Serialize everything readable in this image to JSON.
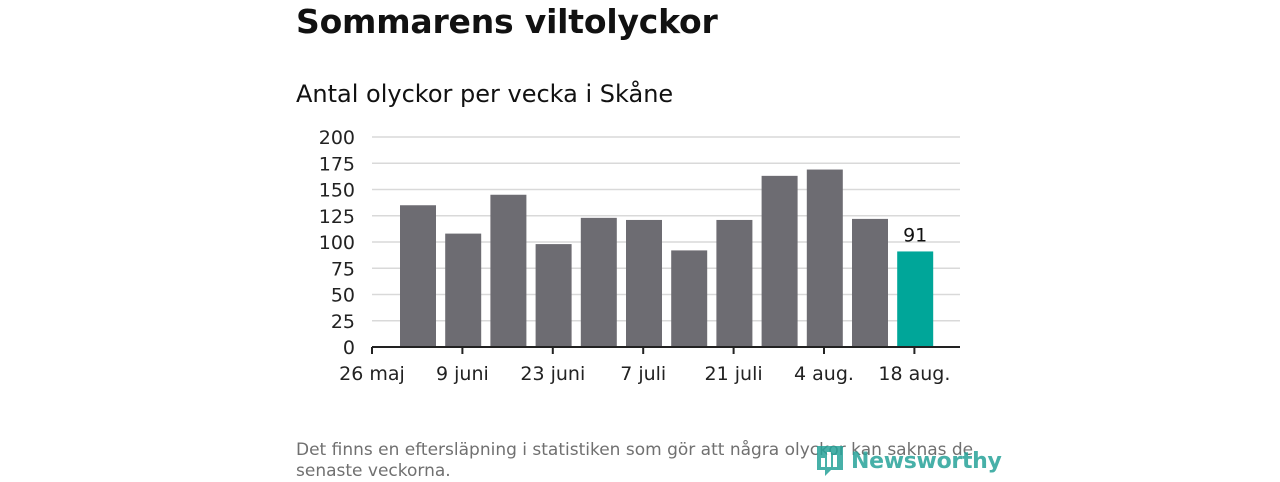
{
  "header": {
    "title": "Sommarens viltolyckor",
    "subtitle": "Antal olyckor per vecka i Skåne"
  },
  "footnote": "Det finns en eftersläpning i statistiken som gör att några olyckor kan saknas de senaste veckorna.",
  "logo": {
    "text": "Newsworthy",
    "icon": "bar-chart-logo-icon",
    "color": "#27a39a"
  },
  "colors": {
    "bar": "#6d6c72",
    "highlight": "#00a699",
    "grid": "#d9d9d9",
    "axis": "#222222"
  },
  "chart_data": {
    "type": "bar",
    "title": "Antal olyckor per vecka i Skåne",
    "xlabel": "",
    "ylabel": "",
    "ylim": [
      0,
      200
    ],
    "yticks": [
      0,
      25,
      50,
      75,
      100,
      125,
      150,
      175,
      200
    ],
    "xtick_labels": [
      "26 maj",
      "9 juni",
      "23 juni",
      "7 juli",
      "21 juli",
      "4 aug.",
      "18 aug."
    ],
    "values": [
      135,
      108,
      145,
      98,
      123,
      121,
      92,
      121,
      163,
      169,
      122,
      91
    ],
    "highlight_index": 11,
    "highlight_label": "91",
    "grid": true,
    "legend": "none"
  }
}
